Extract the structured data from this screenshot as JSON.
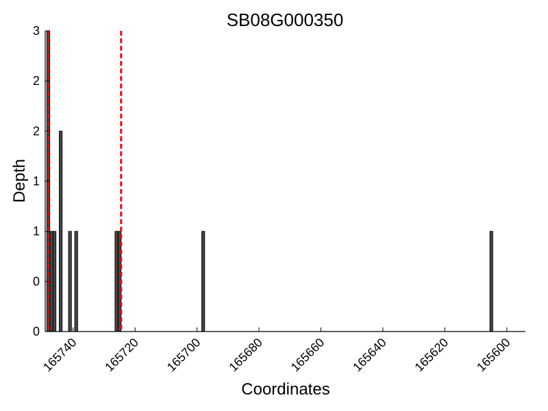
{
  "chart_data": {
    "type": "bar",
    "title": "SB08G000350",
    "xlabel": "Coordinates",
    "ylabel": "Depth",
    "xlim": [
      165749,
      165594
    ],
    "x_reversed": true,
    "ylim": [
      0,
      3
    ],
    "x_ticks": [
      165740,
      165720,
      165700,
      165680,
      165660,
      165640,
      165620,
      165600
    ],
    "x_tick_labels": [
      "165740",
      "165720",
      "165700",
      "165680",
      "165660",
      "165640",
      "165620",
      "165600"
    ],
    "y_ticks": [
      0,
      0.5,
      1,
      1.5,
      2,
      2.5,
      3
    ],
    "y_tick_labels": [
      "0",
      "0",
      "1",
      "1",
      "2",
      "2",
      "3"
    ],
    "grid": false,
    "bar_color": "#444444",
    "reference_line_color": "#ff0000",
    "reference_line_style": "dashed",
    "bars": [
      {
        "x": 165748,
        "depth": 3
      },
      {
        "x": 165747,
        "depth": 1
      },
      {
        "x": 165746,
        "depth": 1
      },
      {
        "x": 165744,
        "depth": 2
      },
      {
        "x": 165741,
        "depth": 1
      },
      {
        "x": 165739,
        "depth": 1
      },
      {
        "x": 165726,
        "depth": 1
      },
      {
        "x": 165725,
        "depth": 1
      },
      {
        "x": 165698,
        "depth": 1
      },
      {
        "x": 165605,
        "depth": 1
      }
    ],
    "reference_lines": [
      165748,
      165724.5
    ]
  }
}
